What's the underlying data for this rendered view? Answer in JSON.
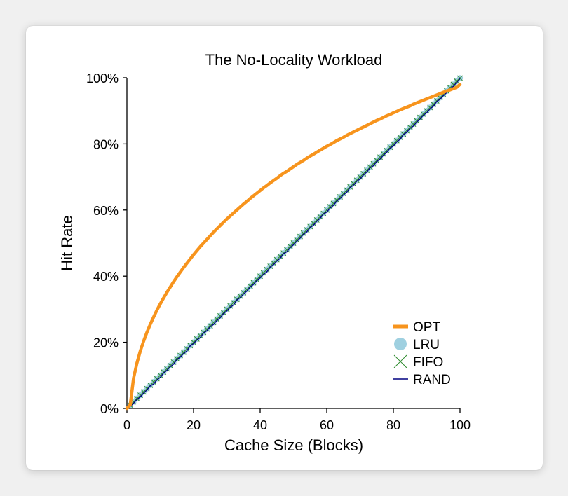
{
  "chart_data": {
    "type": "line",
    "title": "The No-Locality Workload",
    "xlabel": "Cache Size (Blocks)",
    "ylabel": "Hit Rate",
    "xlim": [
      0,
      100
    ],
    "ylim": [
      0,
      100
    ],
    "xticks": [
      0,
      20,
      40,
      60,
      80,
      100
    ],
    "xtick_labels": [
      "0",
      "20",
      "40",
      "60",
      "80",
      "100"
    ],
    "yticks": [
      0,
      20,
      40,
      60,
      80,
      100
    ],
    "ytick_labels": [
      "0%",
      "20%",
      "40%",
      "60%",
      "80%",
      "100%"
    ],
    "grid": false,
    "legend_position": "bottom-right",
    "x": [
      1,
      2,
      3,
      4,
      5,
      6,
      7,
      8,
      9,
      10,
      11,
      12,
      13,
      14,
      15,
      16,
      17,
      18,
      19,
      20,
      21,
      22,
      23,
      24,
      25,
      26,
      27,
      28,
      29,
      30,
      31,
      32,
      33,
      34,
      35,
      36,
      37,
      38,
      39,
      40,
      41,
      42,
      43,
      44,
      45,
      46,
      47,
      48,
      49,
      50,
      51,
      52,
      53,
      54,
      55,
      56,
      57,
      58,
      59,
      60,
      61,
      62,
      63,
      64,
      65,
      66,
      67,
      68,
      69,
      70,
      71,
      72,
      73,
      74,
      75,
      76,
      77,
      78,
      79,
      80,
      81,
      82,
      83,
      84,
      85,
      86,
      87,
      88,
      89,
      90,
      91,
      92,
      93,
      94,
      95,
      96,
      97,
      98,
      99,
      100
    ],
    "series": [
      {
        "name": "OPT",
        "color": "#f7941d",
        "style": "thick-line",
        "values": [
          1.1,
          9.2,
          13.7,
          17.3,
          20.3,
          23.0,
          25.4,
          27.6,
          29.7,
          31.6,
          33.4,
          35.1,
          36.7,
          38.3,
          39.8,
          41.2,
          42.6,
          43.9,
          45.2,
          46.5,
          47.7,
          48.9,
          50.0,
          51.1,
          52.2,
          53.3,
          54.3,
          55.3,
          56.3,
          57.3,
          58.2,
          59.1,
          60.0,
          60.9,
          61.8,
          62.6,
          63.5,
          64.3,
          65.1,
          65.9,
          66.7,
          67.4,
          68.2,
          68.9,
          69.6,
          70.4,
          71.1,
          71.7,
          72.4,
          73.1,
          73.8,
          74.4,
          75.0,
          75.7,
          76.3,
          76.9,
          77.5,
          78.1,
          78.7,
          79.3,
          79.8,
          80.4,
          81.0,
          81.5,
          82.0,
          82.6,
          83.1,
          83.6,
          84.1,
          84.6,
          85.1,
          85.6,
          86.1,
          86.6,
          87.1,
          87.5,
          88.0,
          88.5,
          88.9,
          89.4,
          89.8,
          90.3,
          90.7,
          91.1,
          91.5,
          92.0,
          92.4,
          92.8,
          93.2,
          93.6,
          94.0,
          94.4,
          94.8,
          95.2,
          95.6,
          96.0,
          96.3,
          96.7,
          97.1,
          98.0
        ]
      },
      {
        "name": "LRU",
        "color": "#9fd0e0",
        "style": "markers-circle",
        "values": [
          1.0,
          2.0,
          3.0,
          4.0,
          5.0,
          6.0,
          7.0,
          8.0,
          9.0,
          10.0,
          11.0,
          12.0,
          13.0,
          14.0,
          15.0,
          16.0,
          17.0,
          18.0,
          19.0,
          20.0,
          21.0,
          22.0,
          23.0,
          24.0,
          25.0,
          26.0,
          27.0,
          28.0,
          29.0,
          30.0,
          31.0,
          32.0,
          33.0,
          34.0,
          35.0,
          36.0,
          37.0,
          38.0,
          39.0,
          40.0,
          41.0,
          42.0,
          43.0,
          44.0,
          45.0,
          46.0,
          47.0,
          48.0,
          49.0,
          50.0,
          51.0,
          52.0,
          53.0,
          54.0,
          55.0,
          56.0,
          57.0,
          58.0,
          59.0,
          60.0,
          61.0,
          62.0,
          63.0,
          64.0,
          65.0,
          66.0,
          67.0,
          68.0,
          69.0,
          70.0,
          71.0,
          72.0,
          73.0,
          74.0,
          75.0,
          76.0,
          77.0,
          78.0,
          79.0,
          80.0,
          81.0,
          82.0,
          83.0,
          84.0,
          85.0,
          86.0,
          87.0,
          88.0,
          89.0,
          90.0,
          91.0,
          92.0,
          93.0,
          94.0,
          95.0,
          96.0,
          97.0,
          98.0,
          99.0,
          99.9
        ]
      },
      {
        "name": "FIFO",
        "color": "#2e8b2e",
        "style": "markers-x",
        "values": [
          1.0,
          2.0,
          3.0,
          4.0,
          5.0,
          6.0,
          7.0,
          8.0,
          9.0,
          10.0,
          11.0,
          12.0,
          13.0,
          14.0,
          15.0,
          16.0,
          17.0,
          18.0,
          19.0,
          20.0,
          21.0,
          22.0,
          23.0,
          24.0,
          25.0,
          26.0,
          27.0,
          28.0,
          29.0,
          30.0,
          31.0,
          32.0,
          33.0,
          34.0,
          35.0,
          36.0,
          37.0,
          38.0,
          39.0,
          40.0,
          41.0,
          42.0,
          43.0,
          44.0,
          45.0,
          46.0,
          47.0,
          48.0,
          49.0,
          50.0,
          51.0,
          52.0,
          53.0,
          54.0,
          55.0,
          56.0,
          57.0,
          58.0,
          59.0,
          60.0,
          61.0,
          62.0,
          63.0,
          64.0,
          65.0,
          66.0,
          67.0,
          68.0,
          69.0,
          70.0,
          71.0,
          72.0,
          73.0,
          74.0,
          75.0,
          76.0,
          77.0,
          78.0,
          79.0,
          80.0,
          81.0,
          82.0,
          83.0,
          84.0,
          85.0,
          86.0,
          87.0,
          88.0,
          89.0,
          90.0,
          91.0,
          92.0,
          93.0,
          94.0,
          95.0,
          96.0,
          97.0,
          98.0,
          99.0,
          99.9
        ]
      },
      {
        "name": "RAND",
        "color": "#000080",
        "style": "thin-line",
        "values": [
          0.6,
          1.6,
          2.7,
          3.5,
          4.6,
          5.6,
          6.8,
          7.4,
          8.6,
          9.4,
          10.7,
          11.5,
          12.6,
          13.4,
          14.8,
          15.5,
          16.6,
          17.4,
          18.9,
          19.6,
          20.7,
          21.4,
          22.8,
          23.5,
          24.7,
          25.4,
          26.6,
          27.4,
          28.7,
          29.5,
          30.6,
          31.3,
          32.8,
          33.5,
          34.6,
          35.5,
          36.7,
          37.5,
          38.7,
          39.5,
          40.6,
          41.3,
          42.7,
          43.5,
          44.6,
          45.4,
          46.8,
          47.4,
          48.6,
          49.5,
          50.6,
          51.5,
          52.7,
          53.4,
          54.7,
          55.4,
          56.6,
          57.5,
          58.8,
          59.4,
          60.6,
          61.4,
          62.7,
          63.5,
          64.6,
          65.4,
          66.8,
          67.5,
          68.7,
          69.4,
          70.6,
          71.5,
          72.8,
          73.4,
          74.7,
          75.4,
          76.6,
          77.5,
          78.7,
          79.4,
          80.6,
          81.4,
          82.8,
          83.5,
          84.7,
          85.4,
          86.6,
          87.5,
          88.7,
          89.4,
          90.6,
          91.4,
          92.8,
          93.5,
          94.6,
          95.5,
          96.7,
          97.4,
          98.6,
          99.7
        ]
      }
    ]
  }
}
